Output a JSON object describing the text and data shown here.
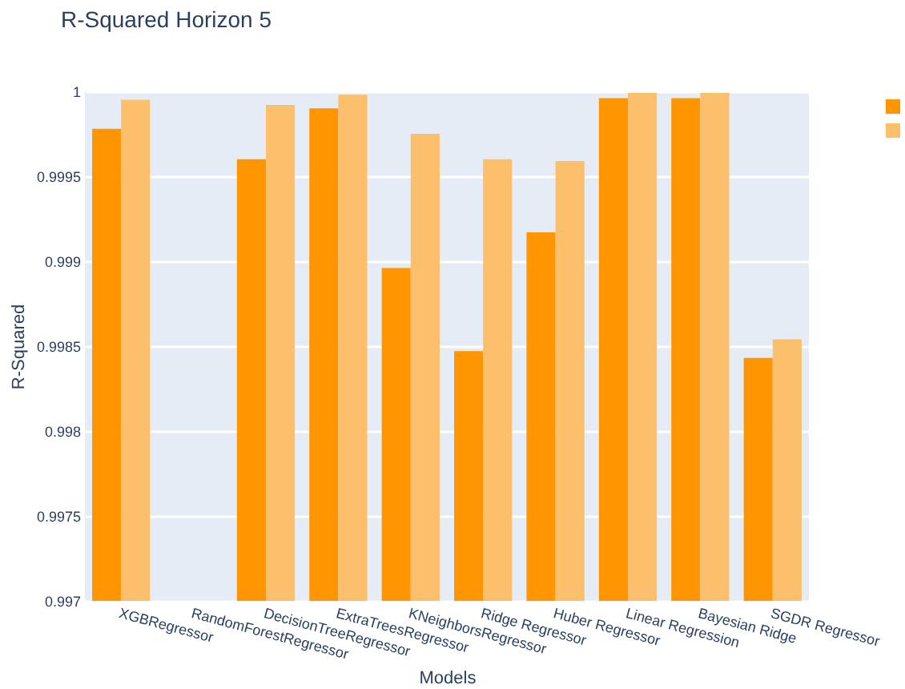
{
  "chart_data": {
    "type": "bar",
    "title": "R-Squared Horizon 5",
    "xlabel": "Models",
    "ylabel": "R-Squared",
    "categories": [
      "XGBRegressor",
      "RandomForestRegressor",
      "DecisionTreeRegressor",
      "ExtraTreesRegressor",
      "KNeighborsRegressor",
      "Ridge Regressor",
      "Huber Regressor",
      "Linear Regression",
      "Bayesian Ridge",
      "SGDR Regressor"
    ],
    "series": [
      {
        "color": "#ff9500",
        "values": [
          0.99978,
          null,
          0.9996,
          0.9999,
          0.99896,
          0.99847,
          0.99917,
          0.99996,
          0.99996,
          0.99843
        ]
      },
      {
        "color": "#fcbf6c",
        "values": [
          0.99995,
          null,
          0.99992,
          0.99998,
          0.99975,
          0.9996,
          0.99959,
          0.99999,
          0.99999,
          0.99854
        ]
      }
    ],
    "ylim": [
      0.997,
      1
    ],
    "yticks": [
      0.997,
      0.9975,
      0.998,
      0.9985,
      0.999,
      0.9995,
      1
    ],
    "grid": "y"
  }
}
